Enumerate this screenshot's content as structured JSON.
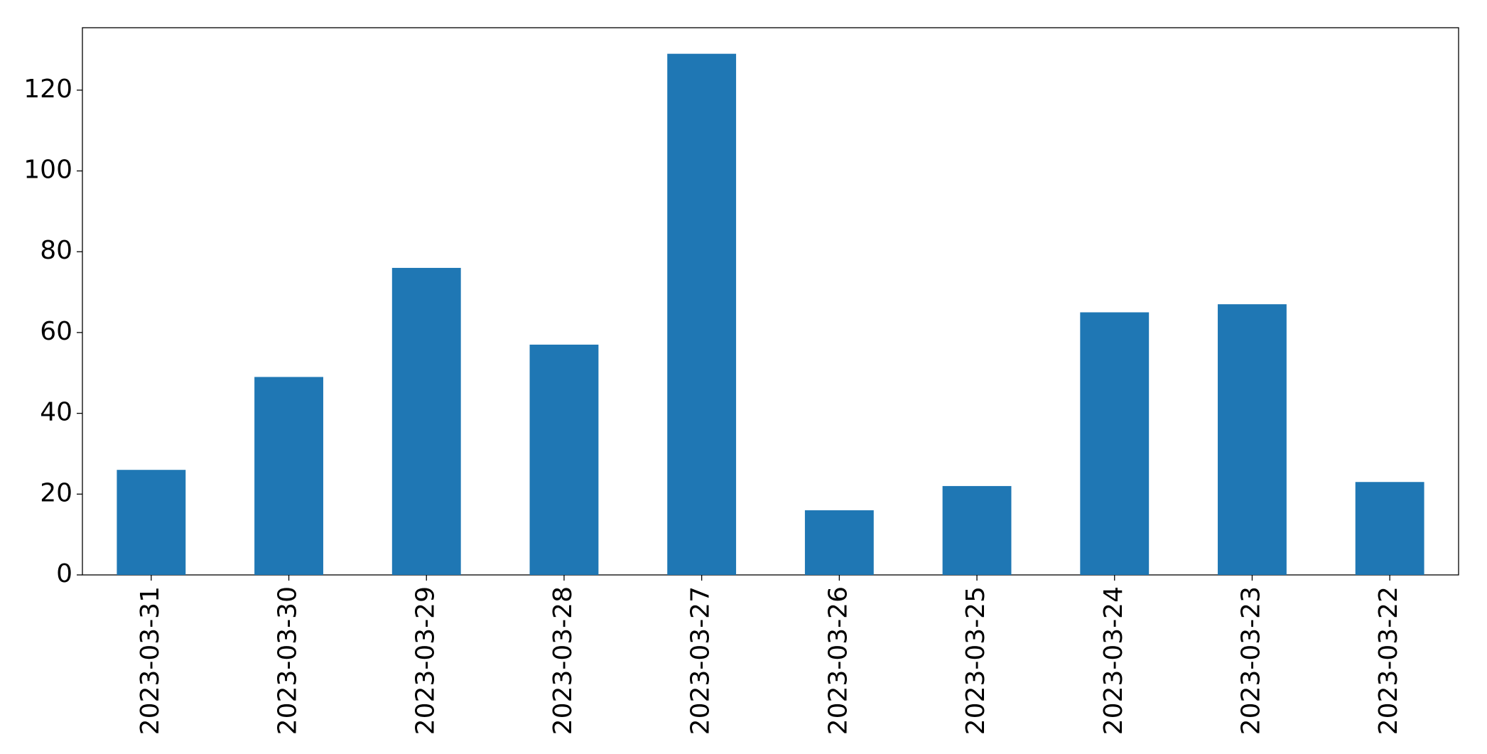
{
  "chart_data": {
    "type": "bar",
    "categories": [
      "2023-03-31",
      "2023-03-30",
      "2023-03-29",
      "2023-03-28",
      "2023-03-27",
      "2023-03-26",
      "2023-03-25",
      "2023-03-24",
      "2023-03-23",
      "2023-03-22"
    ],
    "values": [
      26,
      49,
      76,
      57,
      129,
      16,
      22,
      65,
      67,
      23
    ],
    "color": "#1f77b4",
    "ylim": [
      0,
      135.45
    ],
    "yticks": [
      0,
      20,
      40,
      60,
      80,
      100,
      120
    ],
    "grid": false
  }
}
